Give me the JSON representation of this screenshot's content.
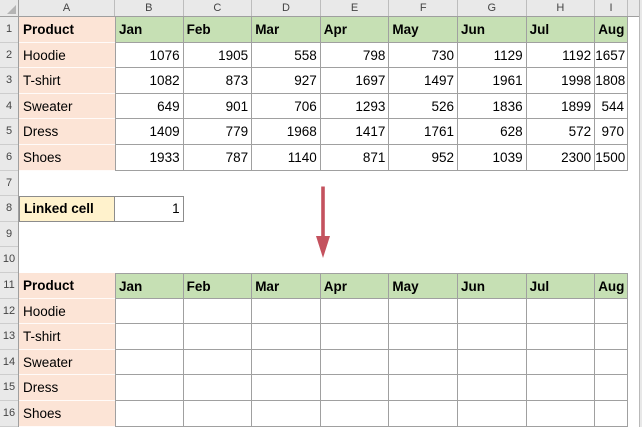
{
  "sheet": {
    "column_headers": [
      "A",
      "B",
      "C",
      "D",
      "E",
      "F",
      "G",
      "H",
      "I"
    ],
    "row_headers": [
      "1",
      "2",
      "3",
      "4",
      "5",
      "6",
      "7",
      "8",
      "9",
      "10",
      "11",
      "12",
      "13",
      "14",
      "15",
      "16"
    ]
  },
  "top_table": {
    "columns": [
      "Product",
      "Jan",
      "Feb",
      "Mar",
      "Apr",
      "May",
      "Jun",
      "Jul",
      "Aug"
    ],
    "rows": [
      {
        "product": "Hoodie",
        "values": [
          "1076",
          "1905",
          "558",
          "798",
          "730",
          "1129",
          "1192",
          "1657"
        ]
      },
      {
        "product": "T-shirt",
        "values": [
          "1082",
          "873",
          "927",
          "1697",
          "1497",
          "1961",
          "1998",
          "1808"
        ]
      },
      {
        "product": "Sweater",
        "values": [
          "649",
          "901",
          "706",
          "1293",
          "526",
          "1836",
          "1899",
          "544"
        ]
      },
      {
        "product": "Dress",
        "values": [
          "1409",
          "779",
          "1968",
          "1417",
          "1761",
          "628",
          "572",
          "970"
        ]
      },
      {
        "product": "Shoes",
        "values": [
          "1933",
          "787",
          "1140",
          "871",
          "952",
          "1039",
          "2300",
          "1500"
        ]
      }
    ]
  },
  "linked_cell": {
    "label": "Linked cell",
    "value": "1"
  },
  "arrow": {
    "shape": "down-arrow",
    "color": "#c4525e"
  },
  "bottom_table": {
    "columns": [
      "Product",
      "Jan",
      "Feb",
      "Mar",
      "Apr",
      "May",
      "Jun",
      "Jul",
      "Aug"
    ],
    "rows": [
      {
        "product": "Hoodie",
        "values": [
          "",
          "",
          "",
          "",
          "",
          "",
          "",
          ""
        ]
      },
      {
        "product": "T-shirt",
        "values": [
          "",
          "",
          "",
          "",
          "",
          "",
          "",
          ""
        ]
      },
      {
        "product": "Sweater",
        "values": [
          "",
          "",
          "",
          "",
          "",
          "",
          "",
          ""
        ]
      },
      {
        "product": "Dress",
        "values": [
          "",
          "",
          "",
          "",
          "",
          "",
          "",
          ""
        ]
      },
      {
        "product": "Shoes",
        "values": [
          "",
          "",
          "",
          "",
          "",
          "",
          "",
          ""
        ]
      }
    ]
  },
  "colors": {
    "month_header_fill": "#c6e0b4",
    "product_column_fill": "#fce4d6",
    "linked_cell_fill": "#fff2cc",
    "table_border": "#a0a0a0",
    "linked_cell_border": "#8c8c8c",
    "arrow": "#c4525e",
    "header_strip_bg": "#e9e9e9",
    "header_strip_text": "#444444"
  }
}
